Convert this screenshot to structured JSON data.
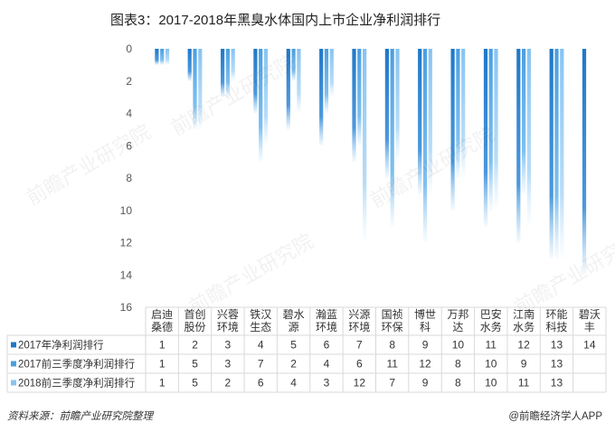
{
  "title": "图表3：2017-2018年黑臭水体国内上市企业净利润排行",
  "source": "资料来源：前瞻产业研究院整理",
  "credit": "@前瞻经济学人APP",
  "watermark": "前瞻产业研究院",
  "colors": {
    "series_2017": "#1f78c8",
    "series_2017q3": "#4a9fe0",
    "series_2018q3": "#86c3f2",
    "grid": "#d9d9d9"
  },
  "chart_data": {
    "type": "bar",
    "orientation": "vertical-inverted",
    "title": "图表3：2017-2018年黑臭水体国内上市企业净利润排行",
    "categories": [
      "启迪桑德",
      "首创股份",
      "兴蓉环境",
      "铁汉生态",
      "碧水源",
      "瀚蓝环境",
      "兴源环境",
      "国祯环保",
      "博世科",
      "万邦达",
      "巴安水务",
      "江南水务",
      "环能科技",
      "碧沃丰"
    ],
    "category_lines": [
      [
        "启迪",
        "桑德"
      ],
      [
        "首创",
        "股份"
      ],
      [
        "兴蓉",
        "环境"
      ],
      [
        "铁汉",
        "生态"
      ],
      [
        "碧水",
        "源"
      ],
      [
        "瀚蓝",
        "环境"
      ],
      [
        "兴源",
        "环境"
      ],
      [
        "国祯",
        "环保"
      ],
      [
        "博世",
        "科"
      ],
      [
        "万邦",
        "达"
      ],
      [
        "巴安",
        "水务"
      ],
      [
        "江南",
        "水务"
      ],
      [
        "环能",
        "科技"
      ],
      [
        "碧沃",
        "丰"
      ]
    ],
    "series": [
      {
        "name": "2017年净利润排行",
        "values": [
          1,
          2,
          3,
          4,
          5,
          6,
          7,
          8,
          9,
          10,
          11,
          12,
          13,
          14
        ]
      },
      {
        "name": "2017前三季度净利润排行",
        "values": [
          1,
          5,
          3,
          7,
          2,
          4,
          6,
          11,
          12,
          8,
          10,
          9,
          13,
          null
        ]
      },
      {
        "name": "2018前三季度净利润排行",
        "values": [
          1,
          5,
          2,
          6,
          4,
          3,
          12,
          7,
          9,
          8,
          10,
          11,
          13,
          null
        ]
      }
    ],
    "yticks": [
      0,
      2,
      4,
      6,
      8,
      10,
      12,
      14,
      16
    ],
    "ylim": [
      0,
      16
    ],
    "y_inverted": true,
    "legend": "table-bottom",
    "grid": false
  }
}
